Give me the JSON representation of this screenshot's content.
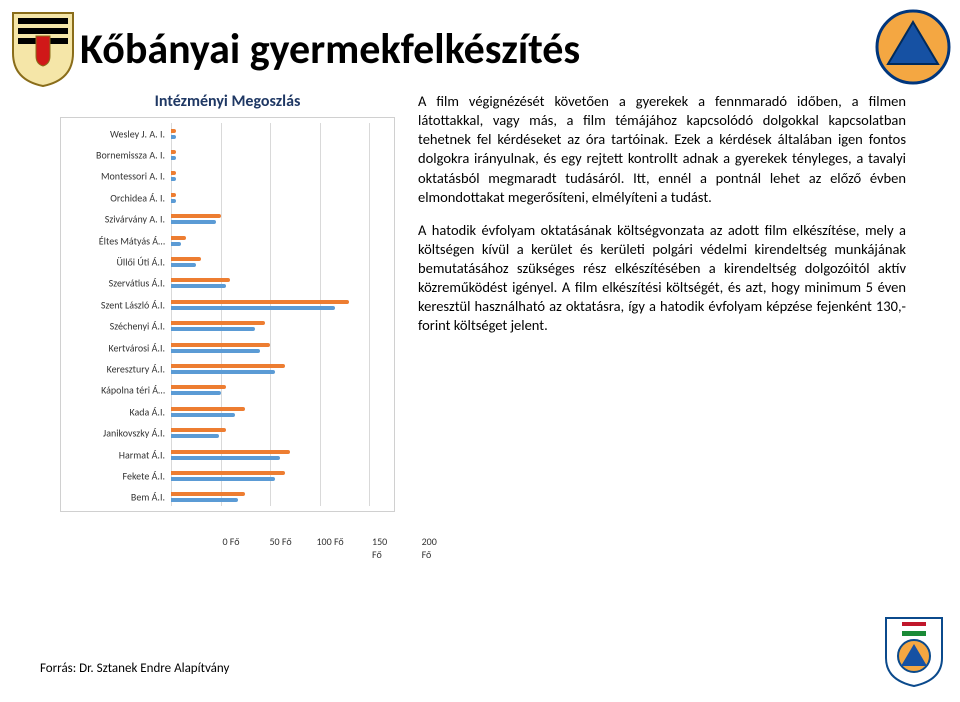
{
  "title": "Kőbányai gyermekfelkészítés",
  "paragraphs": {
    "p1": "A film végignézését követően a gyerekek a fennmaradó időben, a filmen látottakkal, vagy más, a film témájához kapcsolódó dolgokkal kapcsolatban tehetnek fel kérdéseket az óra tartóinak. Ezek a kérdések általában igen fontos dolgokra irányulnak, és egy rejtett kontrollt adnak a gyerekek tényleges, a tavalyi oktatásból megmaradt tudásáról. Itt, ennél a pontnál lehet az előző évben elmondottakat megerősíteni, elmélyíteni a tudást.",
    "p2": "A hatodik évfolyam oktatásának költségvonzata az adott film elkészítése, mely a költségen kívül a kerület és kerületi polgári védelmi kirendeltség munkájának bemutatásához szükséges rész elkészítésében a kirendeltség dolgozóitól aktív közreműködést igényel. A film elkészítési költségét, és azt, hogy minimum 5 éven keresztül használható az oktatásra, így a hatodik évfolyam képzése fejenként 130,- forint költséget jelent."
  },
  "source": "Forrás: Dr. Sztanek Endre Alapítvány",
  "chart": {
    "title": "Intézményi Megoszlás",
    "type": "bar",
    "categories": [
      "Wesley J. A. I.",
      "Bornemissza A. I.",
      "Montessori A. I.",
      "Orchidea Á. I.",
      "Szivárvány A. I.",
      "Éltes Mátyás Á…",
      "Üllői Úti Á.I.",
      "Szervátius Á.I.",
      "Szent László Á.I.",
      "Széchenyi Á.I.",
      "Kertvárosi Á.I.",
      "Keresztury Á.I.",
      "Kápolna téri Á…",
      "Kada Á.I.",
      "Janikovszky Á.I.",
      "Harmat Á.I.",
      "Fekete Á.I.",
      "Bem Á.I."
    ],
    "series1_color": "#ed7d31",
    "series2_color": "#5b9bd5",
    "series1_values": [
      5,
      5,
      5,
      5,
      50,
      15,
      30,
      60,
      180,
      95,
      100,
      115,
      55,
      75,
      55,
      120,
      115,
      75
    ],
    "series2_values": [
      5,
      5,
      5,
      5,
      45,
      10,
      25,
      55,
      165,
      85,
      90,
      105,
      50,
      65,
      48,
      110,
      105,
      68
    ],
    "xlim": [
      0,
      220
    ],
    "x_ticks": [
      0,
      50,
      100,
      150,
      200
    ],
    "x_tick_labels": [
      "0 Fő",
      "50 Fő",
      "100 Fő",
      "150 Fő",
      "200 Fő"
    ],
    "label_fontsize": 10,
    "grid_color": "#d9d9d9",
    "background_color": "#ffffff"
  },
  "icons": {
    "shield_alt": "heraldic-shield-icon",
    "civil_defense_alt": "civil-defense-icon",
    "foundation_alt": "foundation-logo-icon"
  }
}
